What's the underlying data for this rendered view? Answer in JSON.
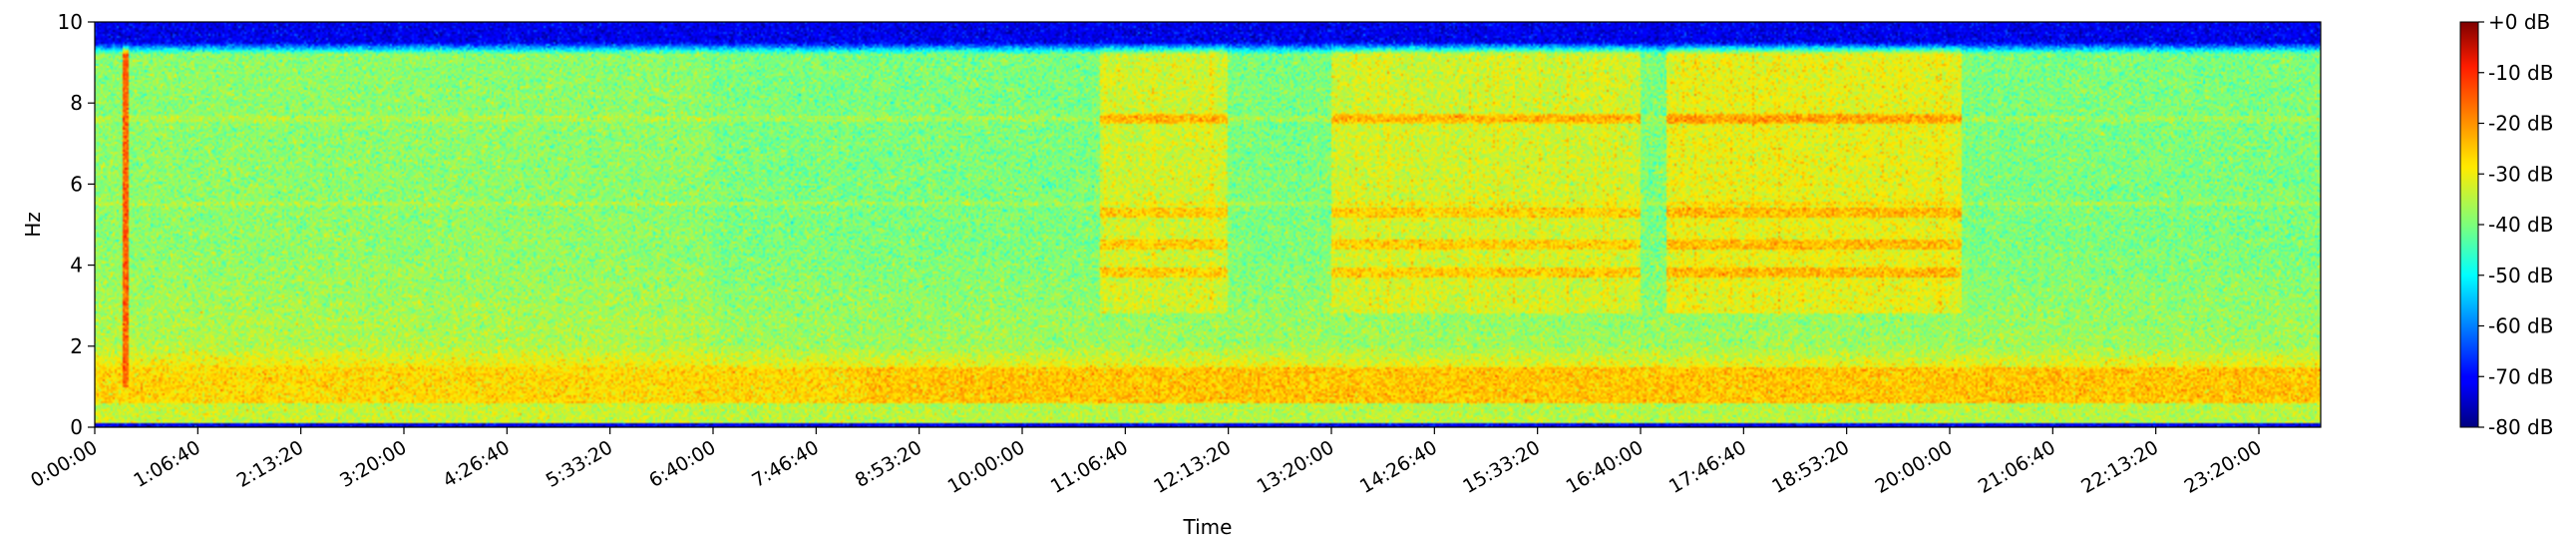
{
  "chart_data": {
    "type": "heatmap",
    "title": "",
    "xlabel": "Time",
    "ylabel": "Hz",
    "xlim_seconds": [
      0,
      86400
    ],
    "ylim": [
      0,
      10
    ],
    "x_ticks": [
      {
        "t": 0,
        "label": "0:00:00"
      },
      {
        "t": 4000,
        "label": "1:06:40"
      },
      {
        "t": 8000,
        "label": "2:13:20"
      },
      {
        "t": 12000,
        "label": "3:20:00"
      },
      {
        "t": 16000,
        "label": "4:26:40"
      },
      {
        "t": 20000,
        "label": "5:33:20"
      },
      {
        "t": 24000,
        "label": "6:40:00"
      },
      {
        "t": 28000,
        "label": "7:46:40"
      },
      {
        "t": 32000,
        "label": "8:53:20"
      },
      {
        "t": 36000,
        "label": "10:00:00"
      },
      {
        "t": 40000,
        "label": "11:06:40"
      },
      {
        "t": 44000,
        "label": "12:13:20"
      },
      {
        "t": 48000,
        "label": "13:20:00"
      },
      {
        "t": 52000,
        "label": "14:26:40"
      },
      {
        "t": 56000,
        "label": "15:33:20"
      },
      {
        "t": 60000,
        "label": "16:40:00"
      },
      {
        "t": 64000,
        "label": "17:46:40"
      },
      {
        "t": 68000,
        "label": "18:53:20"
      },
      {
        "t": 72000,
        "label": "20:00:00"
      },
      {
        "t": 76000,
        "label": "21:06:40"
      },
      {
        "t": 80000,
        "label": "22:13:20"
      },
      {
        "t": 84000,
        "label": "23:20:00"
      }
    ],
    "y_ticks": [
      {
        "v": 0,
        "label": "0"
      },
      {
        "v": 2,
        "label": "2"
      },
      {
        "v": 4,
        "label": "4"
      },
      {
        "v": 6,
        "label": "6"
      },
      {
        "v": 8,
        "label": "8"
      },
      {
        "v": 10,
        "label": "10"
      }
    ],
    "colorbar": {
      "colormap": "jet",
      "range_db": [
        -80,
        0
      ],
      "ticks": [
        {
          "v": 0,
          "label": "+0 dB"
        },
        {
          "v": -10,
          "label": "-10 dB"
        },
        {
          "v": -20,
          "label": "-20 dB"
        },
        {
          "v": -30,
          "label": "-30 dB"
        },
        {
          "v": -40,
          "label": "-40 dB"
        },
        {
          "v": -50,
          "label": "-50 dB"
        },
        {
          "v": -60,
          "label": "-60 dB"
        },
        {
          "v": -70,
          "label": "-70 dB"
        },
        {
          "v": -80,
          "label": "-80 dB"
        }
      ]
    },
    "features": {
      "background_db": -40,
      "low_band": {
        "hz": [
          0.6,
          1.5
        ],
        "db": -26
      },
      "bottom_edge": {
        "hz": [
          0,
          0.12
        ],
        "db": -72
      },
      "top_edge": {
        "hz": [
          9.2,
          10
        ],
        "db": -72
      },
      "broadband_spike": {
        "t": 1200,
        "hz": [
          1,
          9.6
        ],
        "db": -16
      },
      "active_blocks": [
        {
          "t": [
            39000,
            44000
          ],
          "hz": [
            2.8,
            9.5
          ],
          "db": -33
        },
        {
          "t": [
            48000,
            60000
          ],
          "hz": [
            2.8,
            9.6
          ],
          "db": -33
        },
        {
          "t": [
            61000,
            72500
          ],
          "hz": [
            2.8,
            9.7
          ],
          "db": -31
        }
      ],
      "tonal_lines_hz": [
        3.8,
        4.5,
        5.3,
        7.6
      ]
    }
  }
}
